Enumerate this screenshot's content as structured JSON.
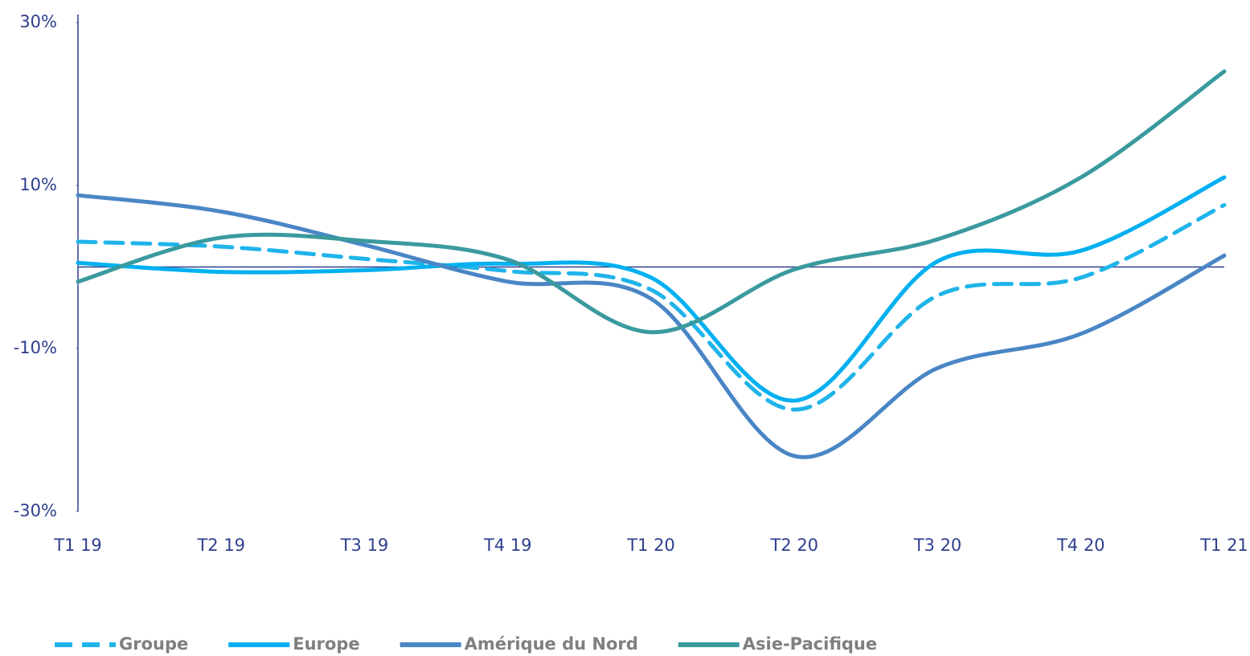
{
  "chart_data": {
    "type": "line",
    "categories": [
      "T1 19",
      "T2 19",
      "T3 19",
      "T4 19",
      "T1 20",
      "T2 20",
      "T3 20",
      "T4 20",
      "T1 21"
    ],
    "series": [
      {
        "name": "Groupe",
        "color": "#1fb4ea",
        "dashed": true,
        "values": [
          3.1,
          2.5,
          1,
          -0.5,
          -2.8,
          -17.5,
          -3.5,
          -1.3,
          7.6
        ]
      },
      {
        "name": "Europe",
        "color": "#00b0f0",
        "values": [
          0.5,
          -0.6,
          -0.4,
          0.4,
          -1.3,
          -16.4,
          0.7,
          2,
          11
        ]
      },
      {
        "name": "Amérique du Nord",
        "color": "#4a86c5",
        "values": [
          8.8,
          6.8,
          2.7,
          -1.8,
          -3.9,
          -23.2,
          -12.4,
          -8.2,
          1.4
        ]
      },
      {
        "name": "Asie-Pacifique",
        "color": "#3a9a9e",
        "values": [
          -1.8,
          3.6,
          3.2,
          0.9,
          -8,
          -0.3,
          3.4,
          11,
          24
        ]
      }
    ],
    "ylim": [
      -30,
      30
    ],
    "yticks": [
      {
        "value": 30,
        "label": "30%"
      },
      {
        "value": 10,
        "label": "10%"
      },
      {
        "value": -10,
        "label": "-10%"
      },
      {
        "value": -30,
        "label": "-30%"
      }
    ],
    "grid": false,
    "legend": "bottom"
  }
}
